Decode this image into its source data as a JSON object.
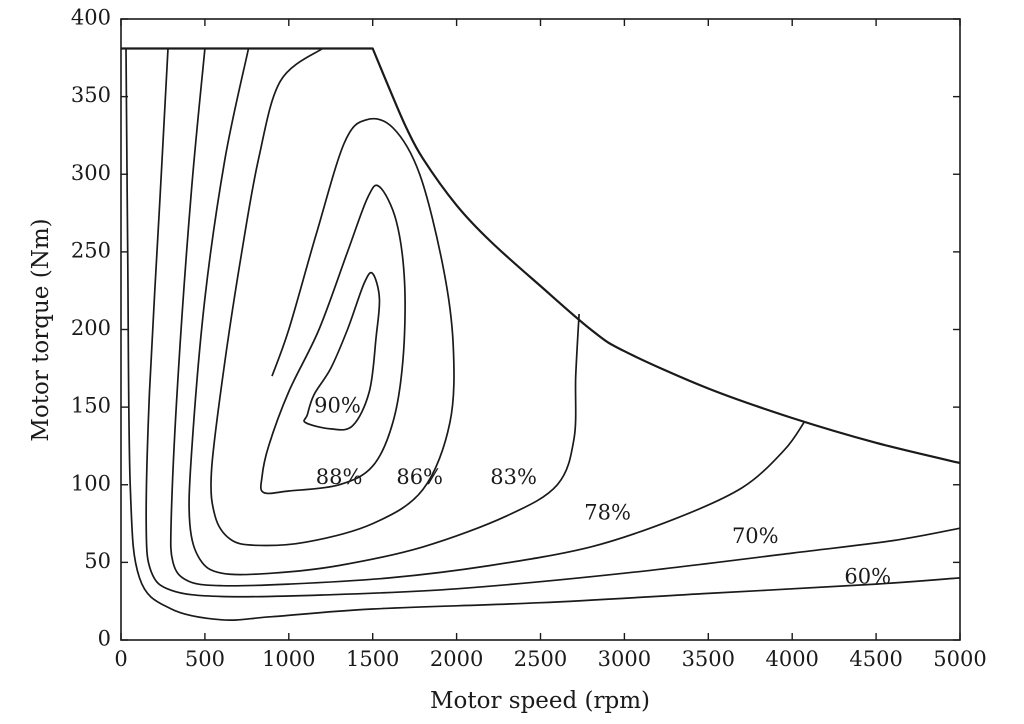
{
  "chart_data": {
    "type": "contour",
    "title": "",
    "xlabel": "Motor speed (rpm)",
    "ylabel": "Motor torque (Nm)",
    "xlim": [
      0,
      5000
    ],
    "ylim": [
      0,
      400
    ],
    "xticks": [
      0,
      500,
      1000,
      1500,
      2000,
      2500,
      3000,
      3500,
      4000,
      4500,
      5000
    ],
    "yticks": [
      0,
      50,
      100,
      150,
      200,
      250,
      300,
      350,
      400
    ],
    "grid": false,
    "envelope": [
      [
        0,
        381
      ],
      [
        1500,
        381
      ],
      [
        1600,
        355
      ],
      [
        1700,
        330
      ],
      [
        1800,
        310
      ],
      [
        2000,
        280
      ],
      [
        2200,
        257
      ],
      [
        2500,
        228
      ],
      [
        2800,
        200
      ],
      [
        3000,
        186
      ],
      [
        3500,
        162
      ],
      [
        4000,
        143
      ],
      [
        4500,
        127
      ],
      [
        5000,
        114
      ]
    ],
    "contours": [
      {
        "label": "90%",
        "label_pos": [
          1290,
          150
        ],
        "closed": true,
        "points": [
          [
            1100,
            140
          ],
          [
            1250,
            136
          ],
          [
            1380,
            138
          ],
          [
            1480,
            160
          ],
          [
            1520,
            195
          ],
          [
            1540,
            220
          ],
          [
            1500,
            236
          ],
          [
            1450,
            230
          ],
          [
            1350,
            200
          ],
          [
            1250,
            175
          ],
          [
            1150,
            158
          ],
          [
            1110,
            145
          ]
        ]
      },
      {
        "label": "88%",
        "label_pos": [
          1300,
          104
        ],
        "closed": true,
        "points": [
          [
            850,
            95
          ],
          [
            1000,
            96
          ],
          [
            1300,
            100
          ],
          [
            1500,
            112
          ],
          [
            1620,
            140
          ],
          [
            1680,
            180
          ],
          [
            1690,
            230
          ],
          [
            1640,
            270
          ],
          [
            1540,
            292
          ],
          [
            1470,
            285
          ],
          [
            1350,
            250
          ],
          [
            1180,
            200
          ],
          [
            1000,
            160
          ],
          [
            880,
            125
          ],
          [
            840,
            105
          ]
        ]
      },
      {
        "label": "86%",
        "label_pos": [
          1780,
          104
        ],
        "closed": false,
        "points": [
          [
            1200,
            381
          ],
          [
            950,
            360
          ],
          [
            820,
            310
          ],
          [
            720,
            250
          ],
          [
            620,
            180
          ],
          [
            540,
            110
          ],
          [
            560,
            80
          ],
          [
            650,
            65
          ],
          [
            800,
            61
          ],
          [
            1100,
            63
          ],
          [
            1500,
            75
          ],
          [
            1800,
            97
          ],
          [
            1960,
            140
          ],
          [
            1980,
            190
          ],
          [
            1920,
            240
          ],
          [
            1780,
            300
          ],
          [
            1620,
            330
          ],
          [
            1460,
            335
          ],
          [
            1330,
            320
          ],
          [
            1160,
            260
          ],
          [
            1000,
            200
          ],
          [
            900,
            170
          ]
        ]
      },
      {
        "label": "83%",
        "label_pos": [
          2340,
          104
        ],
        "closed": false,
        "points": [
          [
            760,
            381
          ],
          [
            620,
            310
          ],
          [
            500,
            220
          ],
          [
            420,
            120
          ],
          [
            410,
            75
          ],
          [
            470,
            52
          ],
          [
            600,
            43
          ],
          [
            900,
            43
          ],
          [
            1300,
            48
          ],
          [
            1800,
            60
          ],
          [
            2300,
            80
          ],
          [
            2600,
            100
          ],
          [
            2700,
            130
          ],
          [
            2710,
            170
          ],
          [
            2730,
            210
          ]
        ]
      },
      {
        "label": "78%",
        "label_pos": [
          2900,
          81
        ],
        "closed": false,
        "points": [
          [
            500,
            381
          ],
          [
            420,
            290
          ],
          [
            340,
            170
          ],
          [
            300,
            80
          ],
          [
            310,
            50
          ],
          [
            400,
            38
          ],
          [
            600,
            35
          ],
          [
            1000,
            36
          ],
          [
            1600,
            40
          ],
          [
            2200,
            48
          ],
          [
            2800,
            60
          ],
          [
            3300,
            78
          ],
          [
            3700,
            98
          ],
          [
            3950,
            122
          ],
          [
            4070,
            140
          ]
        ]
      },
      {
        "label": "70%",
        "label_pos": [
          3780,
          66
        ],
        "closed": false,
        "points": [
          [
            280,
            381
          ],
          [
            230,
            280
          ],
          [
            170,
            160
          ],
          [
            150,
            75
          ],
          [
            180,
            44
          ],
          [
            300,
            32
          ],
          [
            600,
            28
          ],
          [
            1200,
            29
          ],
          [
            2000,
            33
          ],
          [
            3000,
            43
          ],
          [
            4000,
            56
          ],
          [
            4600,
            64
          ],
          [
            5000,
            72
          ]
        ]
      },
      {
        "label": "60%",
        "label_pos": [
          4450,
          40
        ],
        "closed": false,
        "points": [
          [
            30,
            381
          ],
          [
            40,
            250
          ],
          [
            55,
            100
          ],
          [
            110,
            40
          ],
          [
            300,
            20
          ],
          [
            600,
            13
          ],
          [
            900,
            15
          ],
          [
            1500,
            20
          ],
          [
            2500,
            24
          ],
          [
            3500,
            30
          ],
          [
            4500,
            36
          ],
          [
            5000,
            40
          ]
        ]
      }
    ]
  }
}
